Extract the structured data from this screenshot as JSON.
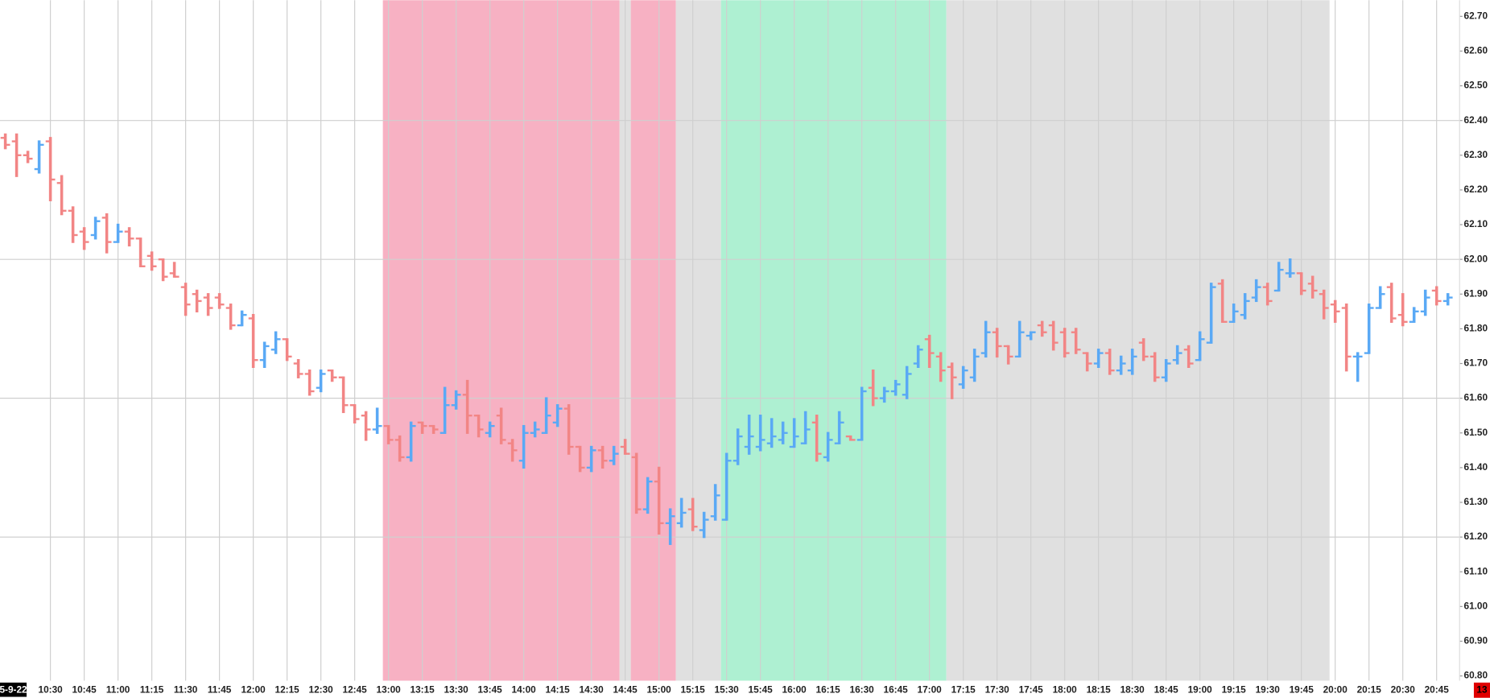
{
  "chart_data": {
    "type": "ohlc",
    "date_label": "5-9-22",
    "timer_label": "13",
    "up_color": "#5aa9f5",
    "down_color": "#f28585",
    "categories": [
      null,
      null,
      null,
      null,
      "10:30",
      null,
      null,
      "10:45",
      null,
      null,
      "11:00",
      null,
      null,
      "11:15",
      null,
      null,
      "11:30",
      null,
      null,
      "11:45",
      null,
      null,
      "12:00",
      null,
      null,
      "12:15",
      null,
      null,
      "12:30",
      null,
      null,
      "12:45",
      null,
      null,
      "13:00",
      null,
      null,
      "13:15",
      null,
      null,
      "13:30",
      null,
      null,
      "13:45",
      null,
      null,
      "14:00",
      null,
      null,
      "14:15",
      null,
      null,
      "14:30",
      null,
      null,
      "14:45",
      null,
      null,
      "15:00",
      null,
      null,
      "15:15",
      null,
      null,
      "15:30",
      null,
      null,
      "15:45",
      null,
      null,
      "16:00",
      null,
      null,
      "16:15",
      null,
      null,
      "16:30",
      null,
      null,
      "16:45",
      null,
      null,
      "17:00",
      null,
      null,
      "17:15",
      null,
      null,
      "17:30",
      null,
      null,
      "17:45",
      null,
      null,
      "18:00",
      null,
      null,
      "18:15",
      null,
      null,
      "18:30",
      null,
      null,
      "18:45",
      null,
      null,
      "19:00",
      null,
      null,
      "19:15",
      null,
      null,
      "19:30",
      null,
      null,
      "19:45",
      null,
      null,
      "20:00",
      null,
      null,
      "20:15",
      null,
      null,
      "20:30",
      null,
      null,
      "20:45",
      null
    ],
    "open": [
      62.35,
      62.34,
      62.3,
      62.26,
      62.34,
      62.22,
      62.14,
      62.08,
      62.07,
      62.12,
      62.05,
      62.08,
      62.06,
      62.01,
      62.0,
      61.96,
      61.92,
      61.9,
      61.89,
      61.89,
      61.86,
      61.81,
      61.83,
      61.71,
      61.74,
      61.77,
      61.7,
      61.67,
      61.63,
      61.68,
      61.66,
      61.58,
      61.55,
      61.51,
      61.52,
      61.48,
      61.43,
      61.53,
      61.52,
      61.5,
      61.58,
      61.61,
      61.55,
      61.5,
      61.55,
      61.47,
      61.42,
      61.5,
      61.5,
      61.53,
      61.57,
      61.46,
      61.4,
      61.45,
      61.42,
      61.46,
      61.43,
      61.28,
      61.36,
      61.24,
      61.24,
      61.28,
      61.22,
      61.26,
      61.25,
      61.42,
      61.46,
      61.46,
      61.47,
      61.48,
      61.46,
      61.47,
      61.53,
      61.43,
      61.47,
      61.49,
      61.48,
      61.63,
      61.6,
      61.62,
      61.61,
      61.7,
      61.77,
      61.72,
      61.69,
      61.64,
      61.66,
      61.73,
      61.79,
      61.75,
      61.72,
      61.78,
      61.81,
      61.81,
      61.79,
      61.79,
      61.73,
      61.7,
      61.73,
      61.68,
      61.68,
      61.76,
      61.72,
      61.66,
      61.71,
      61.74,
      61.71,
      61.76,
      61.93,
      61.82,
      61.84,
      61.89,
      61.92,
      61.91,
      61.96,
      61.96,
      61.93,
      61.9,
      61.87,
      61.86,
      61.72,
      61.73,
      61.86,
      61.92,
      61.84,
      61.82,
      61.85,
      61.91,
      61.88
    ],
    "high": [
      62.36,
      62.36,
      62.31,
      62.34,
      62.35,
      62.24,
      62.15,
      62.09,
      62.12,
      62.13,
      62.1,
      62.09,
      62.06,
      62.02,
      62.0,
      61.99,
      61.93,
      61.91,
      61.9,
      61.9,
      61.87,
      61.85,
      61.84,
      61.76,
      61.79,
      61.77,
      61.71,
      61.68,
      61.68,
      61.68,
      61.66,
      61.58,
      61.56,
      61.57,
      61.52,
      61.49,
      61.53,
      61.53,
      61.52,
      61.63,
      61.62,
      61.65,
      61.55,
      61.53,
      61.57,
      61.48,
      61.52,
      61.53,
      61.6,
      61.58,
      61.58,
      61.46,
      61.46,
      61.46,
      61.46,
      61.48,
      61.44,
      61.37,
      61.4,
      61.28,
      61.31,
      61.31,
      61.27,
      61.35,
      61.44,
      61.51,
      61.55,
      61.55,
      61.54,
      61.53,
      61.54,
      61.56,
      61.55,
      61.5,
      61.56,
      61.49,
      61.63,
      61.68,
      61.63,
      61.65,
      61.69,
      61.75,
      61.78,
      61.73,
      61.7,
      61.69,
      61.74,
      61.82,
      61.8,
      61.75,
      61.82,
      61.79,
      61.82,
      61.82,
      61.8,
      61.8,
      61.73,
      61.74,
      61.74,
      61.72,
      61.74,
      61.77,
      61.73,
      61.71,
      61.75,
      61.75,
      61.79,
      61.93,
      61.94,
      61.87,
      61.9,
      61.94,
      61.93,
      61.99,
      62.0,
      61.96,
      61.95,
      61.91,
      61.88,
      61.87,
      61.73,
      61.87,
      61.92,
      61.93,
      61.9,
      61.86,
      61.91,
      61.92,
      61.9
    ],
    "low": [
      62.32,
      62.24,
      62.28,
      62.25,
      62.17,
      62.13,
      62.05,
      62.03,
      62.06,
      62.02,
      62.05,
      62.04,
      61.98,
      61.97,
      61.94,
      61.95,
      61.84,
      61.85,
      61.84,
      61.86,
      61.8,
      61.81,
      61.69,
      61.69,
      61.73,
      61.71,
      61.66,
      61.61,
      61.62,
      61.65,
      61.56,
      61.53,
      61.48,
      61.5,
      61.47,
      61.42,
      61.42,
      61.5,
      61.5,
      61.5,
      61.57,
      61.5,
      61.49,
      61.49,
      61.47,
      61.42,
      61.4,
      61.49,
      61.5,
      61.52,
      61.44,
      61.39,
      61.39,
      61.4,
      61.41,
      61.44,
      61.27,
      61.27,
      61.21,
      61.18,
      61.23,
      61.22,
      61.2,
      61.25,
      61.25,
      61.41,
      61.44,
      61.45,
      61.46,
      61.47,
      61.46,
      61.47,
      61.42,
      61.42,
      61.47,
      61.48,
      61.48,
      61.58,
      61.59,
      61.61,
      61.6,
      61.69,
      61.69,
      61.65,
      61.6,
      61.63,
      61.65,
      61.72,
      61.72,
      61.7,
      61.72,
      61.77,
      61.78,
      61.74,
      61.72,
      61.73,
      61.68,
      61.69,
      61.67,
      61.67,
      61.67,
      61.71,
      61.65,
      61.65,
      61.7,
      61.69,
      61.71,
      61.76,
      61.82,
      61.82,
      61.83,
      61.88,
      61.87,
      61.91,
      61.95,
      61.9,
      61.89,
      61.83,
      61.82,
      61.68,
      61.65,
      61.73,
      61.86,
      61.82,
      61.81,
      61.82,
      61.84,
      61.87,
      61.87
    ],
    "close": [
      62.33,
      62.3,
      62.29,
      62.33,
      62.23,
      62.14,
      62.07,
      62.05,
      62.11,
      62.05,
      62.08,
      62.06,
      61.98,
      61.98,
      61.95,
      61.95,
      61.87,
      61.88,
      61.86,
      61.87,
      61.81,
      61.84,
      61.71,
      61.75,
      61.77,
      61.72,
      61.67,
      61.62,
      61.67,
      61.66,
      61.58,
      61.54,
      61.51,
      61.52,
      61.48,
      61.43,
      61.52,
      61.52,
      61.51,
      61.58,
      61.61,
      61.55,
      61.51,
      61.52,
      61.48,
      61.45,
      61.5,
      61.51,
      61.55,
      61.57,
      61.46,
      61.4,
      61.45,
      61.42,
      61.44,
      61.44,
      61.28,
      61.36,
      61.24,
      61.26,
      61.27,
      61.23,
      61.25,
      61.32,
      61.42,
      61.49,
      61.49,
      61.48,
      61.49,
      61.5,
      61.49,
      61.51,
      61.44,
      61.48,
      61.53,
      61.48,
      61.62,
      61.6,
      61.62,
      61.64,
      61.67,
      61.74,
      61.73,
      61.68,
      61.66,
      61.68,
      61.72,
      61.79,
      61.75,
      61.72,
      61.79,
      61.79,
      61.79,
      61.76,
      61.73,
      61.74,
      61.7,
      61.73,
      61.68,
      61.7,
      61.72,
      61.72,
      61.66,
      61.7,
      61.73,
      61.7,
      61.77,
      61.92,
      61.82,
      61.85,
      61.88,
      61.92,
      61.88,
      61.97,
      61.96,
      61.91,
      61.91,
      61.86,
      61.85,
      61.72,
      61.72,
      61.86,
      61.9,
      61.83,
      61.82,
      61.85,
      61.89,
      61.88,
      61.89
    ],
    "regions": [
      {
        "from": 34,
        "to": 54,
        "color": "#f7b1c3"
      },
      {
        "from": 55,
        "to": 55,
        "color": "#e0e0e0"
      },
      {
        "from": 56,
        "to": 59,
        "color": "#f7b1c3"
      },
      {
        "from": 60,
        "to": 63,
        "color": "#e0e0e0"
      },
      {
        "from": 64,
        "to": 83,
        "color": "#aef0d2"
      },
      {
        "from": 84,
        "to": 117,
        "color": "#e0e0e0"
      }
    ],
    "ylim": [
      60.8,
      62.7
    ],
    "yticks": [
      {
        "value": 62.7,
        "label": "62.70"
      },
      {
        "value": 62.6,
        "label": "62.60"
      },
      {
        "value": 62.5,
        "label": "62.50"
      },
      {
        "value": 62.4,
        "label": "62.40"
      },
      {
        "value": 62.3,
        "label": "62.30"
      },
      {
        "value": 62.2,
        "label": "62.20"
      },
      {
        "value": 62.1,
        "label": "62.10"
      },
      {
        "value": 62.0,
        "label": "62.00"
      },
      {
        "value": 61.9,
        "label": "61.90"
      },
      {
        "value": 61.8,
        "label": "61.80"
      },
      {
        "value": 61.7,
        "label": "61.70"
      },
      {
        "value": 61.6,
        "label": "61.60"
      },
      {
        "value": 61.5,
        "label": "61.50"
      },
      {
        "value": 61.4,
        "label": "61.40"
      },
      {
        "value": 61.3,
        "label": "61.30"
      },
      {
        "value": 61.2,
        "label": "61.20"
      },
      {
        "value": 61.1,
        "label": "61.10"
      },
      {
        "value": 61.0,
        "label": "61.00"
      },
      {
        "value": 60.9,
        "label": "60.90"
      },
      {
        "value": 60.8,
        "label": "60.80"
      }
    ],
    "grid_y": [
      62.4,
      62.0,
      61.6,
      61.2
    ],
    "grid": true
  }
}
